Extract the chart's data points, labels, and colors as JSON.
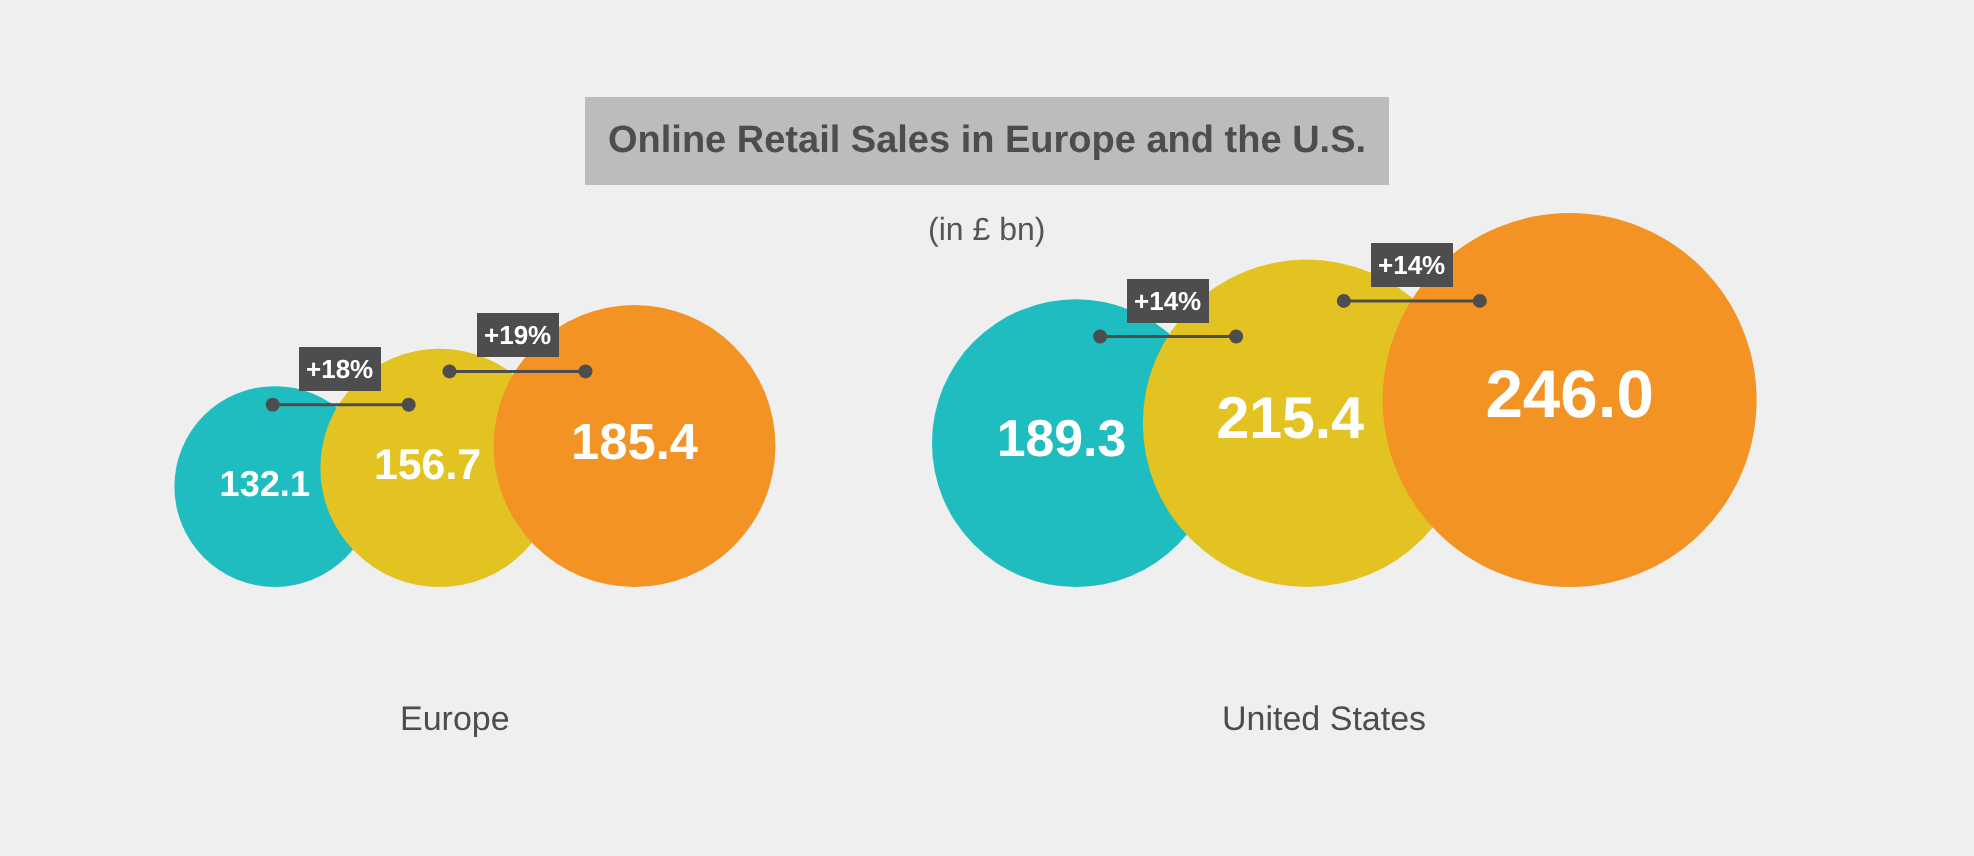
{
  "chart_data": {
    "type": "other",
    "title": "Online Retail Sales in Europe and the U.S.",
    "subtitle": "(in £ bn)",
    "categories": [
      "Europe",
      "United States"
    ],
    "series": [
      {
        "color": "#1fbdbf",
        "values": [
          132.1,
          189.3
        ],
        "value_labels": [
          "132.1",
          "189.3"
        ]
      },
      {
        "color": "#e3c322",
        "values": [
          156.7,
          215.4
        ],
        "value_labels": [
          "156.7",
          "215.4"
        ]
      },
      {
        "color": "#f39323",
        "values": [
          185.4,
          246.0
        ],
        "value_labels": [
          "185.4",
          "246.0"
        ]
      }
    ],
    "annotations": [
      "+18%",
      "+19%",
      "+14%",
      "+14%"
    ]
  }
}
